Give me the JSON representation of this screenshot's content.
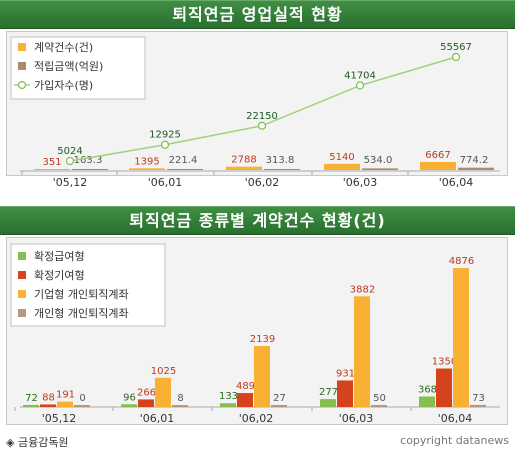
{
  "colors": {
    "banner": "#2f7a34",
    "contracts": "#f8b133",
    "reserves": "#a98c6f",
    "subscribers_line": "#a3d07a",
    "dc": "#86bf4f",
    "db": "#d5421b",
    "corp_irp": "#f8b133",
    "personal_irp": "#b8977a"
  },
  "chart_data": [
    {
      "type": "bar",
      "title": "퇴직연금 영업실적 현황",
      "categories": [
        "'05,12",
        "'06,01",
        "'06,02",
        "'06,03",
        "'06,04"
      ],
      "series": [
        {
          "name": "계약건수(건)",
          "kind": "bar",
          "values": [
            351,
            1395,
            2788,
            5140,
            6667
          ]
        },
        {
          "name": "적립금액(억원)",
          "kind": "bar",
          "values": [
            163.3,
            221.4,
            313.8,
            534.0,
            774.2
          ]
        },
        {
          "name": "가입자수(명)",
          "kind": "line",
          "values": [
            5024,
            12925,
            22150,
            41704,
            55567
          ]
        }
      ],
      "value_labels": {
        "contracts": [
          "351",
          "1395",
          "2788",
          "5140",
          "6667"
        ],
        "reserves": [
          "163.3",
          "221.4",
          "313.8",
          "534.0",
          "774.2"
        ],
        "subscribers": [
          "5024",
          "12925",
          "22150",
          "41704",
          "55567"
        ]
      }
    },
    {
      "type": "bar",
      "title": "퇴직연금 종류별 계약건수 현황(건)",
      "categories": [
        "'05,12",
        "'06,01",
        "'06,02",
        "'06,03",
        "'06,04"
      ],
      "series": [
        {
          "name": "확정급여형",
          "values": [
            72,
            96,
            133,
            277,
            368
          ]
        },
        {
          "name": "확정기여형",
          "values": [
            88,
            266,
            489,
            931,
            1350
          ]
        },
        {
          "name": "기업형 개인퇴직계좌",
          "values": [
            191,
            1025,
            2139,
            3882,
            4876
          ]
        },
        {
          "name": "개인형 개인퇴직계좌",
          "values": [
            0,
            8,
            27,
            50,
            73
          ]
        }
      ]
    }
  ],
  "footer": {
    "source": "◈ 금융감독원",
    "credit": "copyright datanews"
  }
}
